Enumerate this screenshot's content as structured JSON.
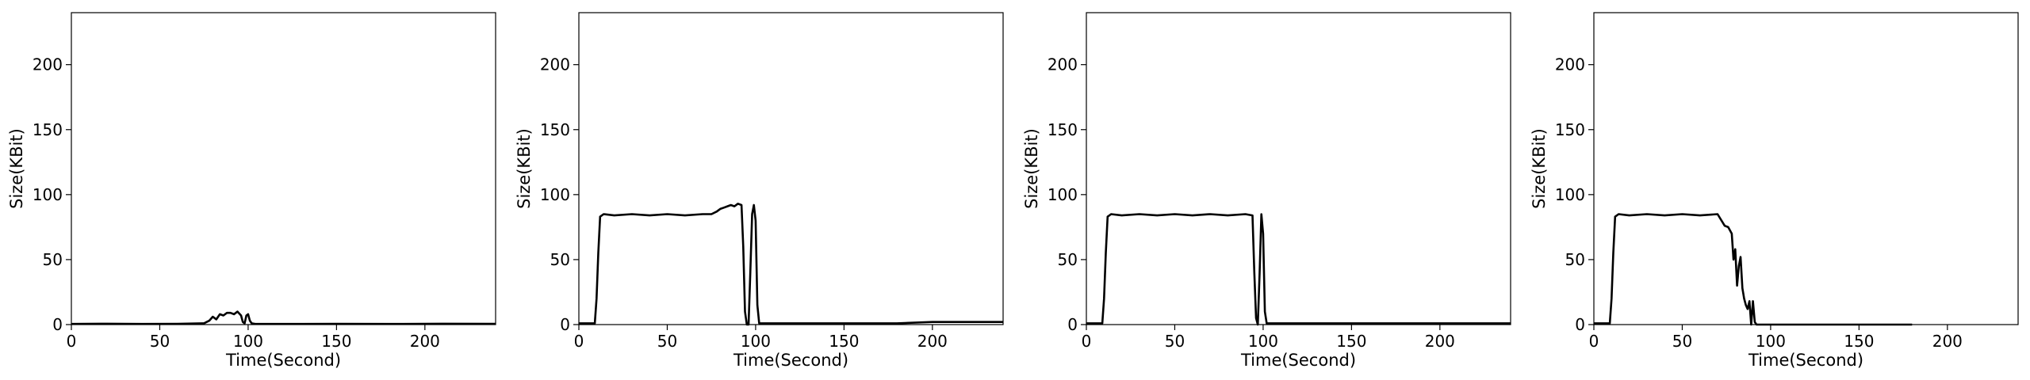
{
  "chart_data": [
    {
      "type": "line",
      "xlabel": "Time(Second)",
      "ylabel": "Size(KBit)",
      "xlim": [
        0,
        240
      ],
      "ylim": [
        0,
        240
      ],
      "xticks": [
        0,
        50,
        100,
        150,
        200
      ],
      "yticks": [
        0,
        50,
        100,
        150,
        200
      ],
      "series": [
        {
          "color": "#000000",
          "x": [
            0,
            20,
            40,
            60,
            75,
            78,
            80,
            82,
            84,
            86,
            88,
            90,
            92,
            94,
            96,
            97,
            98,
            99,
            100,
            101,
            102,
            104,
            120,
            150,
            180,
            210,
            240
          ],
          "y": [
            0.5,
            0.7,
            0.5,
            0.6,
            1,
            3,
            6,
            4,
            8,
            7,
            9,
            9,
            8,
            10,
            7,
            2,
            1,
            7,
            8,
            3,
            1,
            0.5,
            0.5,
            0.6,
            0.5,
            0.7,
            0.6
          ]
        }
      ]
    },
    {
      "type": "line",
      "xlabel": "Time(Second)",
      "ylabel": "Size(KBit)",
      "xlim": [
        0,
        240
      ],
      "ylim": [
        0,
        240
      ],
      "xticks": [
        0,
        50,
        100,
        150,
        200
      ],
      "yticks": [
        0,
        50,
        100,
        150,
        200
      ],
      "series": [
        {
          "color": "#000000",
          "x": [
            0,
            9,
            10,
            11,
            12,
            14,
            20,
            30,
            40,
            50,
            60,
            70,
            75,
            78,
            80,
            82,
            84,
            86,
            88,
            90,
            92,
            93,
            94,
            95,
            96,
            97,
            98,
            99,
            100,
            101,
            102,
            104,
            120,
            150,
            180,
            200,
            240
          ],
          "y": [
            1,
            1,
            20,
            55,
            83,
            85,
            84,
            85,
            84,
            85,
            84,
            85,
            85,
            87,
            89,
            90,
            91,
            92,
            91,
            93,
            92,
            60,
            10,
            0,
            0,
            40,
            85,
            92,
            80,
            15,
            1,
            1,
            1,
            1,
            1,
            2,
            2
          ]
        }
      ]
    },
    {
      "type": "line",
      "xlabel": "Time(Second)",
      "ylabel": "Size(KBit)",
      "xlim": [
        0,
        240
      ],
      "ylim": [
        0,
        240
      ],
      "xticks": [
        0,
        50,
        100,
        150,
        200
      ],
      "yticks": [
        0,
        50,
        100,
        150,
        200
      ],
      "series": [
        {
          "color": "#000000",
          "x": [
            0,
            9,
            10,
            11,
            12,
            14,
            20,
            30,
            40,
            50,
            60,
            70,
            80,
            90,
            94,
            95,
            96,
            97,
            98,
            99,
            100,
            101,
            102,
            104,
            120,
            150,
            180,
            210,
            240
          ],
          "y": [
            1,
            1,
            20,
            55,
            83,
            85,
            84,
            85,
            84,
            85,
            84,
            85,
            84,
            85,
            84,
            40,
            5,
            0,
            40,
            85,
            70,
            10,
            1,
            1,
            1,
            1,
            1,
            1,
            1
          ]
        }
      ]
    },
    {
      "type": "line",
      "xlabel": "Time(Second)",
      "ylabel": "Size(KBit)",
      "xlim": [
        0,
        240
      ],
      "ylim": [
        0,
        240
      ],
      "xticks": [
        0,
        50,
        100,
        150,
        200
      ],
      "yticks": [
        0,
        50,
        100,
        150,
        200
      ],
      "series": [
        {
          "color": "#000000",
          "x": [
            0,
            9,
            10,
            11,
            12,
            14,
            20,
            30,
            40,
            50,
            60,
            70,
            74,
            76,
            78,
            79,
            80,
            81,
            82,
            83,
            84,
            85,
            86,
            87,
            88,
            89,
            90,
            91,
            92,
            100,
            120,
            150,
            180
          ],
          "y": [
            1,
            1,
            20,
            55,
            83,
            85,
            84,
            85,
            84,
            85,
            84,
            85,
            76,
            75,
            70,
            50,
            58,
            30,
            45,
            52,
            28,
            20,
            15,
            12,
            18,
            0,
            18,
            2,
            0,
            0,
            0,
            0,
            0
          ]
        }
      ]
    }
  ]
}
